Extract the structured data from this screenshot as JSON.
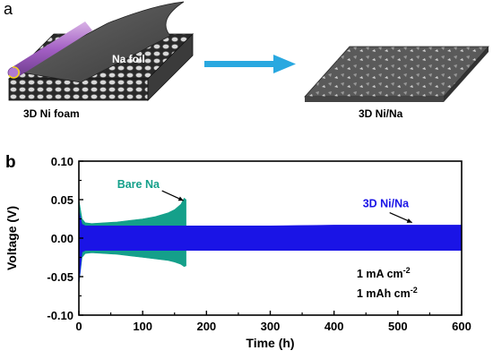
{
  "panel_a": {
    "label": "a",
    "foil_label": "Na foil",
    "left_caption": "3D Ni foam",
    "right_caption": "3D Ni/Na"
  },
  "panel_b_label": "b",
  "chart_data": {
    "type": "line",
    "xlabel": "Time (h)",
    "ylabel": "Voltage (V)",
    "xlim": [
      0,
      600
    ],
    "ylim": [
      -0.1,
      0.1
    ],
    "xticks": [
      0,
      100,
      200,
      300,
      400,
      500,
      600
    ],
    "yticks": [
      -0.1,
      -0.05,
      0.0,
      0.05,
      0.1
    ],
    "ytick_labels": [
      "-0.10",
      "-0.05",
      "0.00",
      "0.05",
      "0.10"
    ],
    "grid": false,
    "series": [
      {
        "name": "Bare Na",
        "color": "#14a08a",
        "x": [
          0,
          5,
          10,
          20,
          40,
          60,
          80,
          100,
          120,
          140,
          150,
          160,
          165,
          168
        ],
        "upper": [
          0.05,
          0.025,
          0.02,
          0.019,
          0.02,
          0.021,
          0.023,
          0.025,
          0.028,
          0.033,
          0.037,
          0.044,
          0.052,
          0.05
        ],
        "lower": [
          -0.06,
          -0.025,
          -0.02,
          -0.019,
          -0.02,
          -0.021,
          -0.023,
          -0.025,
          -0.027,
          -0.029,
          -0.031,
          -0.034,
          -0.037,
          -0.036
        ]
      },
      {
        "name": "3D Ni/Na",
        "color": "#1a14e6",
        "x": [
          0,
          5,
          10,
          100,
          200,
          300,
          400,
          500,
          600
        ],
        "upper": [
          0.035,
          0.018,
          0.016,
          0.016,
          0.016,
          0.016,
          0.017,
          0.017,
          0.017
        ],
        "lower": [
          -0.06,
          -0.018,
          -0.016,
          -0.016,
          -0.016,
          -0.016,
          -0.016,
          -0.016,
          -0.016
        ]
      }
    ],
    "annotations": [
      {
        "text": "Bare Na",
        "color": "#14a08a",
        "x": 60,
        "y": 0.065
      },
      {
        "text": "3D Ni/Na",
        "color": "#1a14e6",
        "x": 445,
        "y": 0.04
      }
    ],
    "conditions": [
      "1 mA cm",
      "1 mAh cm"
    ],
    "conditions_sup": [
      "-2",
      "-2"
    ]
  }
}
